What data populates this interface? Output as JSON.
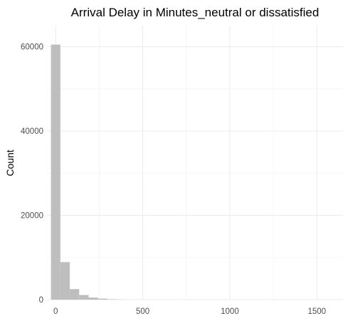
{
  "chart_data": {
    "type": "bar",
    "title": "Arrival Delay in Minutes_neutral or dissatisfied",
    "xlabel": "",
    "ylabel": "Count",
    "xlim": [
      -50,
      1650
    ],
    "ylim": [
      0,
      65000
    ],
    "x_ticks": [
      0,
      500,
      1000,
      1500
    ],
    "x_tick_labels": [
      "0",
      "500",
      "1000",
      "1500"
    ],
    "y_ticks": [
      0,
      20000,
      40000,
      60000
    ],
    "y_tick_labels": [
      "0",
      "20000",
      "40000",
      "60000"
    ],
    "grid": true,
    "bar_color": "#bebebe",
    "bins": [
      {
        "x0": -27,
        "x1": 27,
        "count": 60500
      },
      {
        "x0": 27,
        "x1": 81,
        "count": 8900
      },
      {
        "x0": 81,
        "x1": 135,
        "count": 2500
      },
      {
        "x0": 135,
        "x1": 189,
        "count": 1100
      },
      {
        "x0": 189,
        "x1": 243,
        "count": 500
      },
      {
        "x0": 243,
        "x1": 297,
        "count": 250
      },
      {
        "x0": 297,
        "x1": 351,
        "count": 100
      },
      {
        "x0": 351,
        "x1": 405,
        "count": 50
      }
    ]
  }
}
